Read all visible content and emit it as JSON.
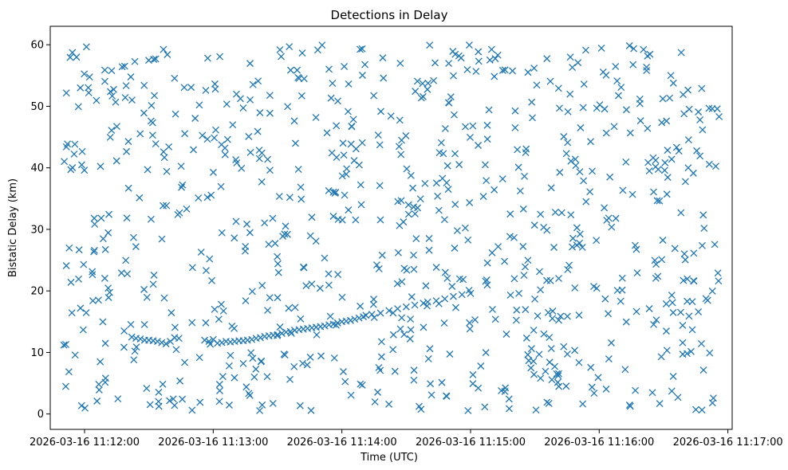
{
  "chart_data": {
    "type": "scatter",
    "title": "Detections in Delay",
    "xlabel": "Time (UTC)",
    "ylabel": "Bistatic Delay (km)",
    "marker": "x",
    "color": "#1f77b4",
    "xlim_seconds": [
      -16,
      302
    ],
    "ylim": [
      -2.5,
      63
    ],
    "x_ticks": [
      {
        "t": 0,
        "label": "2026-03-16 11:12:00"
      },
      {
        "t": 60,
        "label": "2026-03-16 11:13:00"
      },
      {
        "t": 120,
        "label": "2026-03-16 11:14:00"
      },
      {
        "t": 180,
        "label": "2026-03-16 11:15:00"
      },
      {
        "t": 240,
        "label": "2026-03-16 11:16:00"
      },
      {
        "t": 300,
        "label": "2026-03-16 11:17:00"
      }
    ],
    "y_ticks": [
      0,
      10,
      20,
      30,
      40,
      50,
      60
    ],
    "x_time_origin": "2026-03-16 11:12:00",
    "track_points": [
      [
        22,
        12.5
      ],
      [
        24,
        12.3
      ],
      [
        26,
        12.2
      ],
      [
        28,
        12.0
      ],
      [
        30,
        12.0
      ],
      [
        32,
        11.9
      ],
      [
        34,
        11.8
      ],
      [
        36,
        11.6
      ],
      [
        38,
        11.4
      ],
      [
        40,
        11.8
      ],
      [
        42,
        12.4
      ],
      [
        44,
        12.3
      ],
      [
        56,
        12.0
      ],
      [
        58,
        11.8
      ],
      [
        60,
        12.1
      ],
      [
        62,
        11.5
      ],
      [
        64,
        11.6
      ],
      [
        66,
        11.8
      ],
      [
        68,
        11.7
      ],
      [
        70,
        11.8
      ],
      [
        72,
        11.9
      ],
      [
        74,
        11.9
      ],
      [
        76,
        12.0
      ],
      [
        78,
        12.1
      ],
      [
        80,
        12.3
      ],
      [
        82,
        12.4
      ],
      [
        84,
        12.6
      ],
      [
        86,
        12.7
      ],
      [
        88,
        12.8
      ],
      [
        90,
        12.9
      ],
      [
        92,
        13.1
      ],
      [
        94,
        13.3
      ],
      [
        96,
        13.4
      ],
      [
        98,
        13.6
      ],
      [
        100,
        13.7
      ],
      [
        102,
        13.8
      ],
      [
        104,
        13.9
      ],
      [
        106,
        14.0
      ],
      [
        108,
        14.1
      ],
      [
        110,
        14.2
      ],
      [
        112,
        14.3
      ],
      [
        114,
        14.5
      ],
      [
        116,
        14.6
      ],
      [
        118,
        14.8
      ],
      [
        120,
        15.0
      ],
      [
        122,
        15.1
      ],
      [
        124,
        15.2
      ],
      [
        126,
        15.4
      ],
      [
        128,
        15.6
      ],
      [
        130,
        15.8
      ],
      [
        134,
        16.2
      ],
      [
        138,
        16.4
      ],
      [
        142,
        16.8
      ],
      [
        146,
        17.1
      ],
      [
        150,
        17.4
      ],
      [
        154,
        17.7
      ],
      [
        158,
        18.0
      ],
      [
        160,
        18.2
      ],
      [
        164,
        18.4
      ],
      [
        168,
        18.7
      ],
      [
        172,
        19.1
      ],
      [
        176,
        19.4
      ],
      [
        180,
        19.6
      ]
    ],
    "clutter_count": 820,
    "clutter_seed": 12345
  }
}
